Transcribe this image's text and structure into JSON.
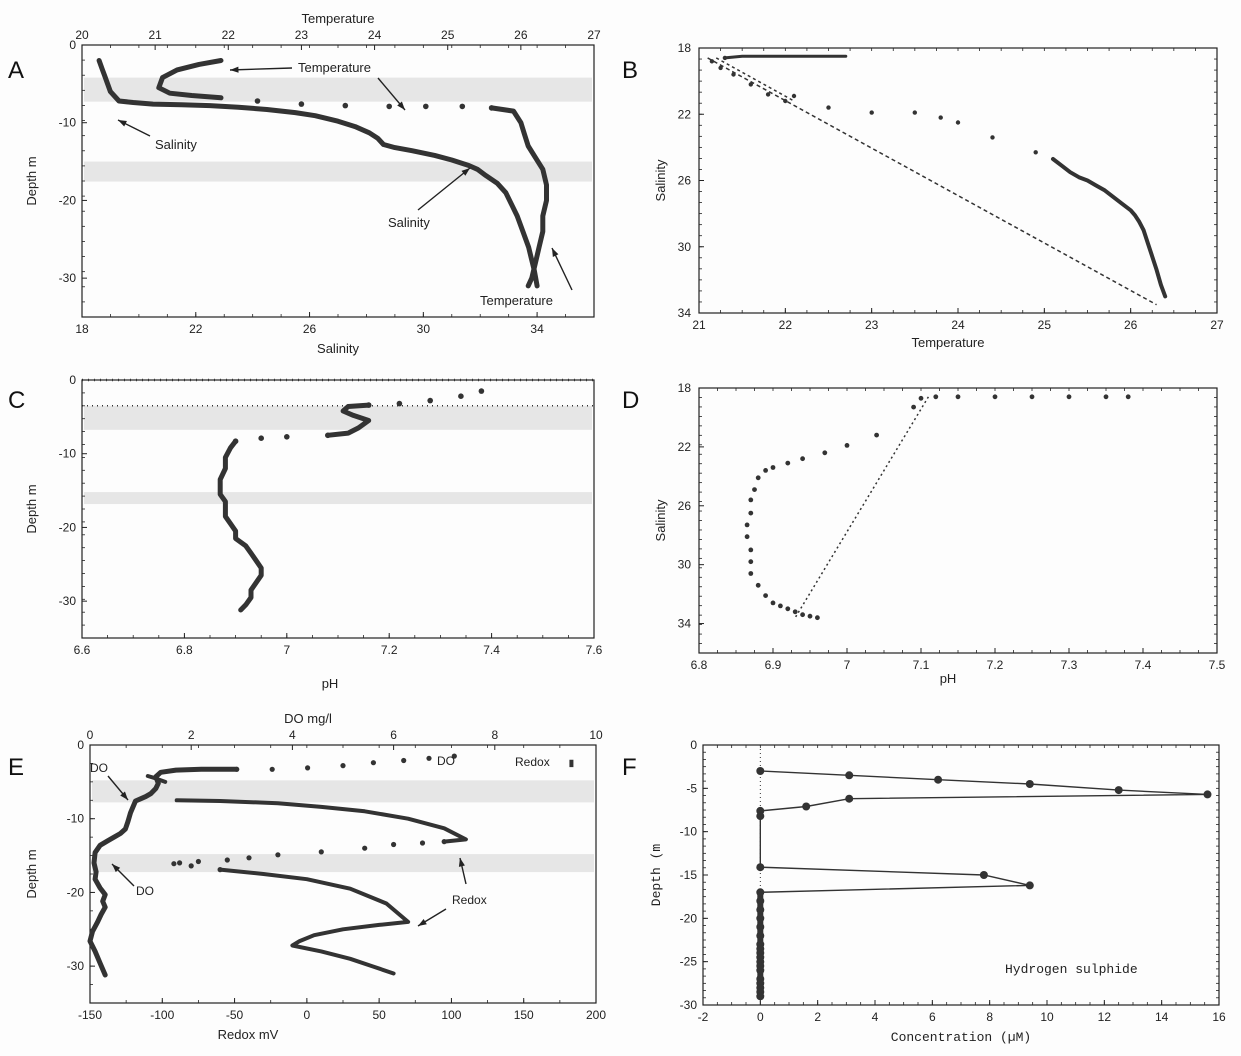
{
  "chart_data": [
    {
      "panel": "A",
      "type": "line",
      "xlabel": "Salinity",
      "x2label": "Temperature",
      "ylabel": "Depth m",
      "xlim": [
        18,
        36
      ],
      "x2lim": [
        20,
        27
      ],
      "ylim": [
        -35,
        0
      ],
      "xticks": [
        "18",
        "22",
        "26",
        "30",
        "34"
      ],
      "x2ticks": [
        "20",
        "21",
        "22",
        "23",
        "24",
        "25",
        "26",
        "27"
      ],
      "yticks": [
        "0",
        "-10",
        "-20",
        "-30"
      ],
      "annotations": [
        "Temperature",
        "Salinity",
        "Salinity",
        "Temperature"
      ],
      "series": [
        {
          "name": "Salinity",
          "axis": "bottom",
          "x": [
            18.6,
            18.7,
            18.8,
            18.9,
            19.0,
            19.3,
            19.8,
            20.5,
            21.5,
            22.5,
            23.5,
            24.5,
            25.5,
            26.2,
            27.0,
            27.6,
            28.1,
            28.4,
            28.6,
            29.0,
            29.6,
            30.4,
            31.0,
            31.6,
            31.9,
            32.2,
            32.6,
            32.9,
            33.1,
            33.3,
            33.5,
            33.7,
            33.8,
            33.9,
            33.95,
            34.0
          ],
          "y": [
            -2,
            -3,
            -4,
            -5,
            -6,
            -7.2,
            -7.4,
            -7.6,
            -7.7,
            -7.8,
            -8.0,
            -8.3,
            -8.7,
            -9.1,
            -9.8,
            -10.5,
            -11.3,
            -12,
            -12.8,
            -13.2,
            -13.6,
            -14.2,
            -14.8,
            -15.5,
            -16,
            -16.8,
            -17.8,
            -19,
            -20.5,
            -22,
            -24,
            -26,
            -27.5,
            -29,
            -30,
            -31
          ]
        },
        {
          "name": "Temperature",
          "axis": "top",
          "x": [
            21.9,
            21.6,
            21.3,
            21.1,
            21.05,
            21.2,
            21.5,
            21.9,
            22.4,
            23.0,
            23.6,
            24.2,
            24.7,
            25.2,
            25.6,
            25.9,
            26.0,
            26.05,
            26.1,
            26.2,
            26.3,
            26.35,
            26.35,
            26.3,
            26.3,
            26.25,
            26.2,
            26.15,
            26.1
          ],
          "y": [
            -2,
            -2.5,
            -3.2,
            -4.2,
            -5.5,
            -6.2,
            -6.5,
            -6.8,
            -7.2,
            -7.6,
            -7.8,
            -7.9,
            -7.9,
            -7.9,
            -8.1,
            -8.5,
            -10,
            -11.5,
            -13,
            -14.5,
            -16,
            -18,
            -20,
            -22,
            -24,
            -26,
            -28,
            -30,
            -31
          ]
        }
      ]
    },
    {
      "panel": "B",
      "type": "scatter",
      "xlabel": "Temperature",
      "ylabel": "Salinity",
      "xlim": [
        21,
        27
      ],
      "ylim": [
        34,
        18
      ],
      "xticks": [
        "21",
        "22",
        "23",
        "24",
        "25",
        "26",
        "27"
      ],
      "yticks": [
        "18",
        "22",
        "26",
        "30",
        "34"
      ],
      "points": {
        "x": [
          22.7,
          22.5,
          22.3,
          22.1,
          21.9,
          21.7,
          21.5,
          21.3,
          21.15,
          21.25,
          21.4,
          21.6,
          21.8,
          22.0,
          22.1,
          22.5,
          23.0,
          23.5,
          23.8,
          24.0,
          24.4,
          24.9,
          25.1,
          25.2,
          25.3,
          25.4,
          25.5,
          25.6,
          25.7,
          25.8,
          25.9,
          26.0,
          26.05,
          26.1,
          26.15,
          26.2,
          26.25,
          26.3,
          26.35,
          26.4
        ],
        "y": [
          18.5,
          18.5,
          18.5,
          18.5,
          18.5,
          18.5,
          18.5,
          18.6,
          18.8,
          19.2,
          19.6,
          20.2,
          20.8,
          21.2,
          20.9,
          21.6,
          21.9,
          21.9,
          22.2,
          22.5,
          23.4,
          24.3,
          24.7,
          25.1,
          25.5,
          25.8,
          26.0,
          26.3,
          26.6,
          27.0,
          27.4,
          27.8,
          28.1,
          28.5,
          29.0,
          29.8,
          30.6,
          31.4,
          32.3,
          33.0
        ]
      },
      "dashed_line": {
        "x": [
          21.1,
          26.3
        ],
        "y": [
          18.6,
          33.5
        ]
      }
    },
    {
      "panel": "C",
      "type": "line",
      "xlabel": "pH",
      "ylabel": "Depth m",
      "xlim": [
        6.6,
        7.6
      ],
      "ylim": [
        -35,
        0
      ],
      "xticks": [
        "6.6",
        "6.8",
        "7",
        "7.2",
        "7.4",
        "7.6"
      ],
      "yticks": [
        "0",
        "-10",
        "-20",
        "-30"
      ],
      "series": [
        {
          "name": "pH",
          "x": [
            7.38,
            7.34,
            7.28,
            7.22,
            7.16,
            7.12,
            7.11,
            7.13,
            7.16,
            7.14,
            7.12,
            7.08,
            7.0,
            6.95,
            6.9,
            6.89,
            6.88,
            6.88,
            6.87,
            6.87,
            6.87,
            6.88,
            6.88,
            6.88,
            6.89,
            6.9,
            6.9,
            6.92,
            6.93,
            6.94,
            6.95,
            6.95,
            6.94,
            6.93,
            6.93,
            6.92,
            6.91
          ],
          "y": [
            -1.5,
            -2.2,
            -2.8,
            -3.2,
            -3.4,
            -3.6,
            -4.2,
            -4.8,
            -5.5,
            -6.5,
            -7.2,
            -7.5,
            -7.7,
            -7.9,
            -8.3,
            -9.2,
            -10.5,
            -12,
            -13.5,
            -14.5,
            -15.5,
            -16.5,
            -17.5,
            -18.5,
            -19.5,
            -20.5,
            -21.5,
            -22.5,
            -23.5,
            -24.5,
            -25.5,
            -26.5,
            -27.5,
            -28.5,
            -29.5,
            -30.5,
            -31.2
          ]
        }
      ]
    },
    {
      "panel": "D",
      "type": "scatter",
      "xlabel": "pH",
      "ylabel": "Salinity",
      "xlim": [
        6.8,
        7.5
      ],
      "ylim": [
        36,
        18
      ],
      "xticks": [
        "6.8",
        "6.9",
        "7",
        "7.1",
        "7.2",
        "7.3",
        "7.4",
        "7.5"
      ],
      "yticks": [
        "18",
        "22",
        "26",
        "30",
        "34"
      ],
      "points": {
        "x": [
          7.38,
          7.35,
          7.3,
          7.25,
          7.2,
          7.15,
          7.12,
          7.1,
          7.09,
          7.04,
          7.0,
          6.97,
          6.94,
          6.92,
          6.9,
          6.89,
          6.88,
          6.875,
          6.87,
          6.87,
          6.865,
          6.865,
          6.87,
          6.87,
          6.87,
          6.88,
          6.89,
          6.9,
          6.91,
          6.92,
          6.93,
          6.94,
          6.95,
          6.96
        ],
        "y": [
          18.6,
          18.6,
          18.6,
          18.6,
          18.6,
          18.6,
          18.6,
          18.7,
          19.3,
          21.2,
          21.9,
          22.4,
          22.8,
          23.1,
          23.4,
          23.6,
          24.1,
          24.9,
          25.6,
          26.5,
          27.3,
          28.1,
          29.0,
          29.8,
          30.6,
          31.4,
          32.1,
          32.6,
          32.8,
          33.0,
          33.2,
          33.4,
          33.5,
          33.6
        ]
      },
      "dotted_line": {
        "x": [
          7.11,
          6.93
        ],
        "y": [
          18.6,
          33.6
        ]
      }
    },
    {
      "panel": "E",
      "type": "line",
      "xlabel": "Redox mV",
      "x2label": "DO mg/l",
      "ylabel": "Depth m",
      "xlim": [
        -150,
        200
      ],
      "x2lim": [
        0,
        10
      ],
      "ylim": [
        -35,
        0
      ],
      "xticks": [
        "-150",
        "-100",
        "-50",
        "0",
        "50",
        "100",
        "150",
        "200"
      ],
      "x2ticks": [
        "0",
        "2",
        "4",
        "6",
        "8",
        "10"
      ],
      "yticks": [
        "0",
        "-10",
        "-20",
        "-30"
      ],
      "annotations": [
        "DO",
        "DO",
        "Redox",
        "DO",
        "Redox"
      ],
      "series": [
        {
          "name": "DO",
          "axis": "top",
          "x": [
            7.2,
            6.7,
            6.2,
            5.6,
            5.0,
            4.3,
            3.6,
            2.9,
            2.2,
            1.7,
            1.4,
            1.3,
            1.35,
            1.3,
            1.2,
            1.1,
            1.0,
            0.9,
            0.85,
            0.8,
            0.75,
            0.7,
            0.6,
            0.5,
            0.35,
            0.2,
            0.1,
            0.08,
            0.12,
            0.1,
            0.2,
            0.3,
            0.25,
            0.3,
            0.22,
            0.15,
            0.05,
            0.0,
            0.1,
            0.2,
            0.3
          ],
          "y": [
            -1.5,
            -1.8,
            -2.1,
            -2.4,
            -2.8,
            -3.1,
            -3.3,
            -3.3,
            -3.3,
            -3.4,
            -3.7,
            -4.3,
            -5.2,
            -5.9,
            -6.6,
            -7.0,
            -7.3,
            -7.6,
            -8.4,
            -9.2,
            -10.4,
            -11.4,
            -12.0,
            -12.4,
            -13.0,
            -13.6,
            -14.6,
            -16.0,
            -17.2,
            -18.2,
            -19.4,
            -20.3,
            -21.2,
            -22.0,
            -23.0,
            -24.0,
            -25.3,
            -26.6,
            -28.0,
            -29.6,
            -31.2
          ]
        },
        {
          "name": "Redox",
          "axis": "bottom",
          "x": [
            -110,
            -105,
            -98,
            -90,
            -60,
            -20,
            10,
            40,
            70,
            95,
            110,
            95,
            80,
            60,
            40,
            10,
            -20,
            -40,
            -55,
            -75,
            -88,
            -92,
            -80,
            -60,
            -30,
            0,
            30,
            55,
            70,
            50,
            25,
            5,
            -5,
            -10,
            10,
            30,
            45,
            60
          ],
          "y": [
            -4.2,
            -4.5,
            -5.0,
            -7.5,
            -7.6,
            -7.9,
            -8.4,
            -9.0,
            -10.0,
            -11.3,
            -12.8,
            -13.1,
            -13.3,
            -13.5,
            -14.0,
            -14.5,
            -14.9,
            -15.3,
            -15.6,
            -15.8,
            -16.0,
            -16.1,
            -16.4,
            -16.9,
            -17.5,
            -18.2,
            -19.5,
            -21.5,
            -24.0,
            -24.4,
            -25.0,
            -25.8,
            -26.6,
            -27.2,
            -28.0,
            -29.0,
            -30.0,
            -31.0
          ]
        }
      ]
    },
    {
      "panel": "F",
      "type": "line",
      "xlabel": "Concentration (µM)",
      "ylabel": "Depth (m",
      "xlim": [
        -2,
        16
      ],
      "ylim": [
        -30,
        0
      ],
      "xticks": [
        "-2",
        "0",
        "2",
        "4",
        "6",
        "8",
        "10",
        "12",
        "14",
        "16"
      ],
      "yticks": [
        "0",
        "-5",
        "-10",
        "-15",
        "-20",
        "-25",
        "-30"
      ],
      "annotations": [
        "Hydrogen sulphide"
      ],
      "series": [
        {
          "name": "Hydrogen sulphide",
          "x": [
            0,
            3.1,
            6.2,
            9.4,
            12.5,
            15.6,
            3.1,
            1.6,
            0,
            0,
            0,
            7.8,
            9.4,
            0,
            0,
            0,
            0,
            0,
            0,
            0,
            0,
            0,
            0,
            0,
            0,
            0,
            0,
            0,
            0,
            0,
            0
          ],
          "y": [
            -3,
            -3.5,
            -4,
            -4.5,
            -5.2,
            -5.7,
            -6.2,
            -7.1,
            -7.6,
            -8.2,
            -14.1,
            -15.0,
            -16.2,
            -17.0,
            -18.0,
            -19.0,
            -20.0,
            -21.0,
            -22.0,
            -23.0,
            -23.5,
            -24.0,
            -24.5,
            -25.0,
            -25.5,
            -26.0,
            -27.0,
            -27.5,
            -28.0,
            -28.5,
            -29.0
          ]
        }
      ]
    }
  ]
}
